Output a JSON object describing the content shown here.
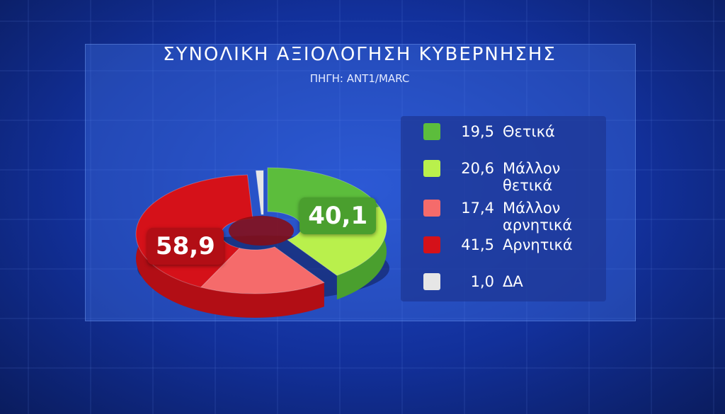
{
  "chart_data": {
    "type": "pie",
    "title": "ΣΥΝΟΛΙΚΗ ΑΞΙΟΛΟΓΗΣΗ ΚΥΒΕΡΝΗΣΗΣ",
    "subtitle": "ΠΗΓΗ: ANT1/MARC",
    "categories": [
      "Θετικά",
      "Μάλλον θετικά",
      "Μάλλον αρνητικά",
      "Αρνητικά",
      "ΔΑ"
    ],
    "values": [
      19.5,
      20.6,
      17.4,
      41.5,
      1.0
    ],
    "value_labels": [
      "19,5",
      "20,6",
      "17,4",
      "41,5",
      "1,0"
    ],
    "colors": [
      "#5cbd3c",
      "#b9f04c",
      "#f56b6b",
      "#d51119",
      "#e6e6e6"
    ],
    "groups": [
      {
        "members": [
          "Θετικά",
          "Μάλλον θετικά"
        ],
        "value": 40.1,
        "label": "40,1",
        "color": "#4a9f2e"
      },
      {
        "members": [
          "Μάλλον αρνητικά",
          "Αρνητικά"
        ],
        "value": 58.9,
        "label": "58,9",
        "color": "#b20e15"
      }
    ],
    "legend": "right"
  }
}
